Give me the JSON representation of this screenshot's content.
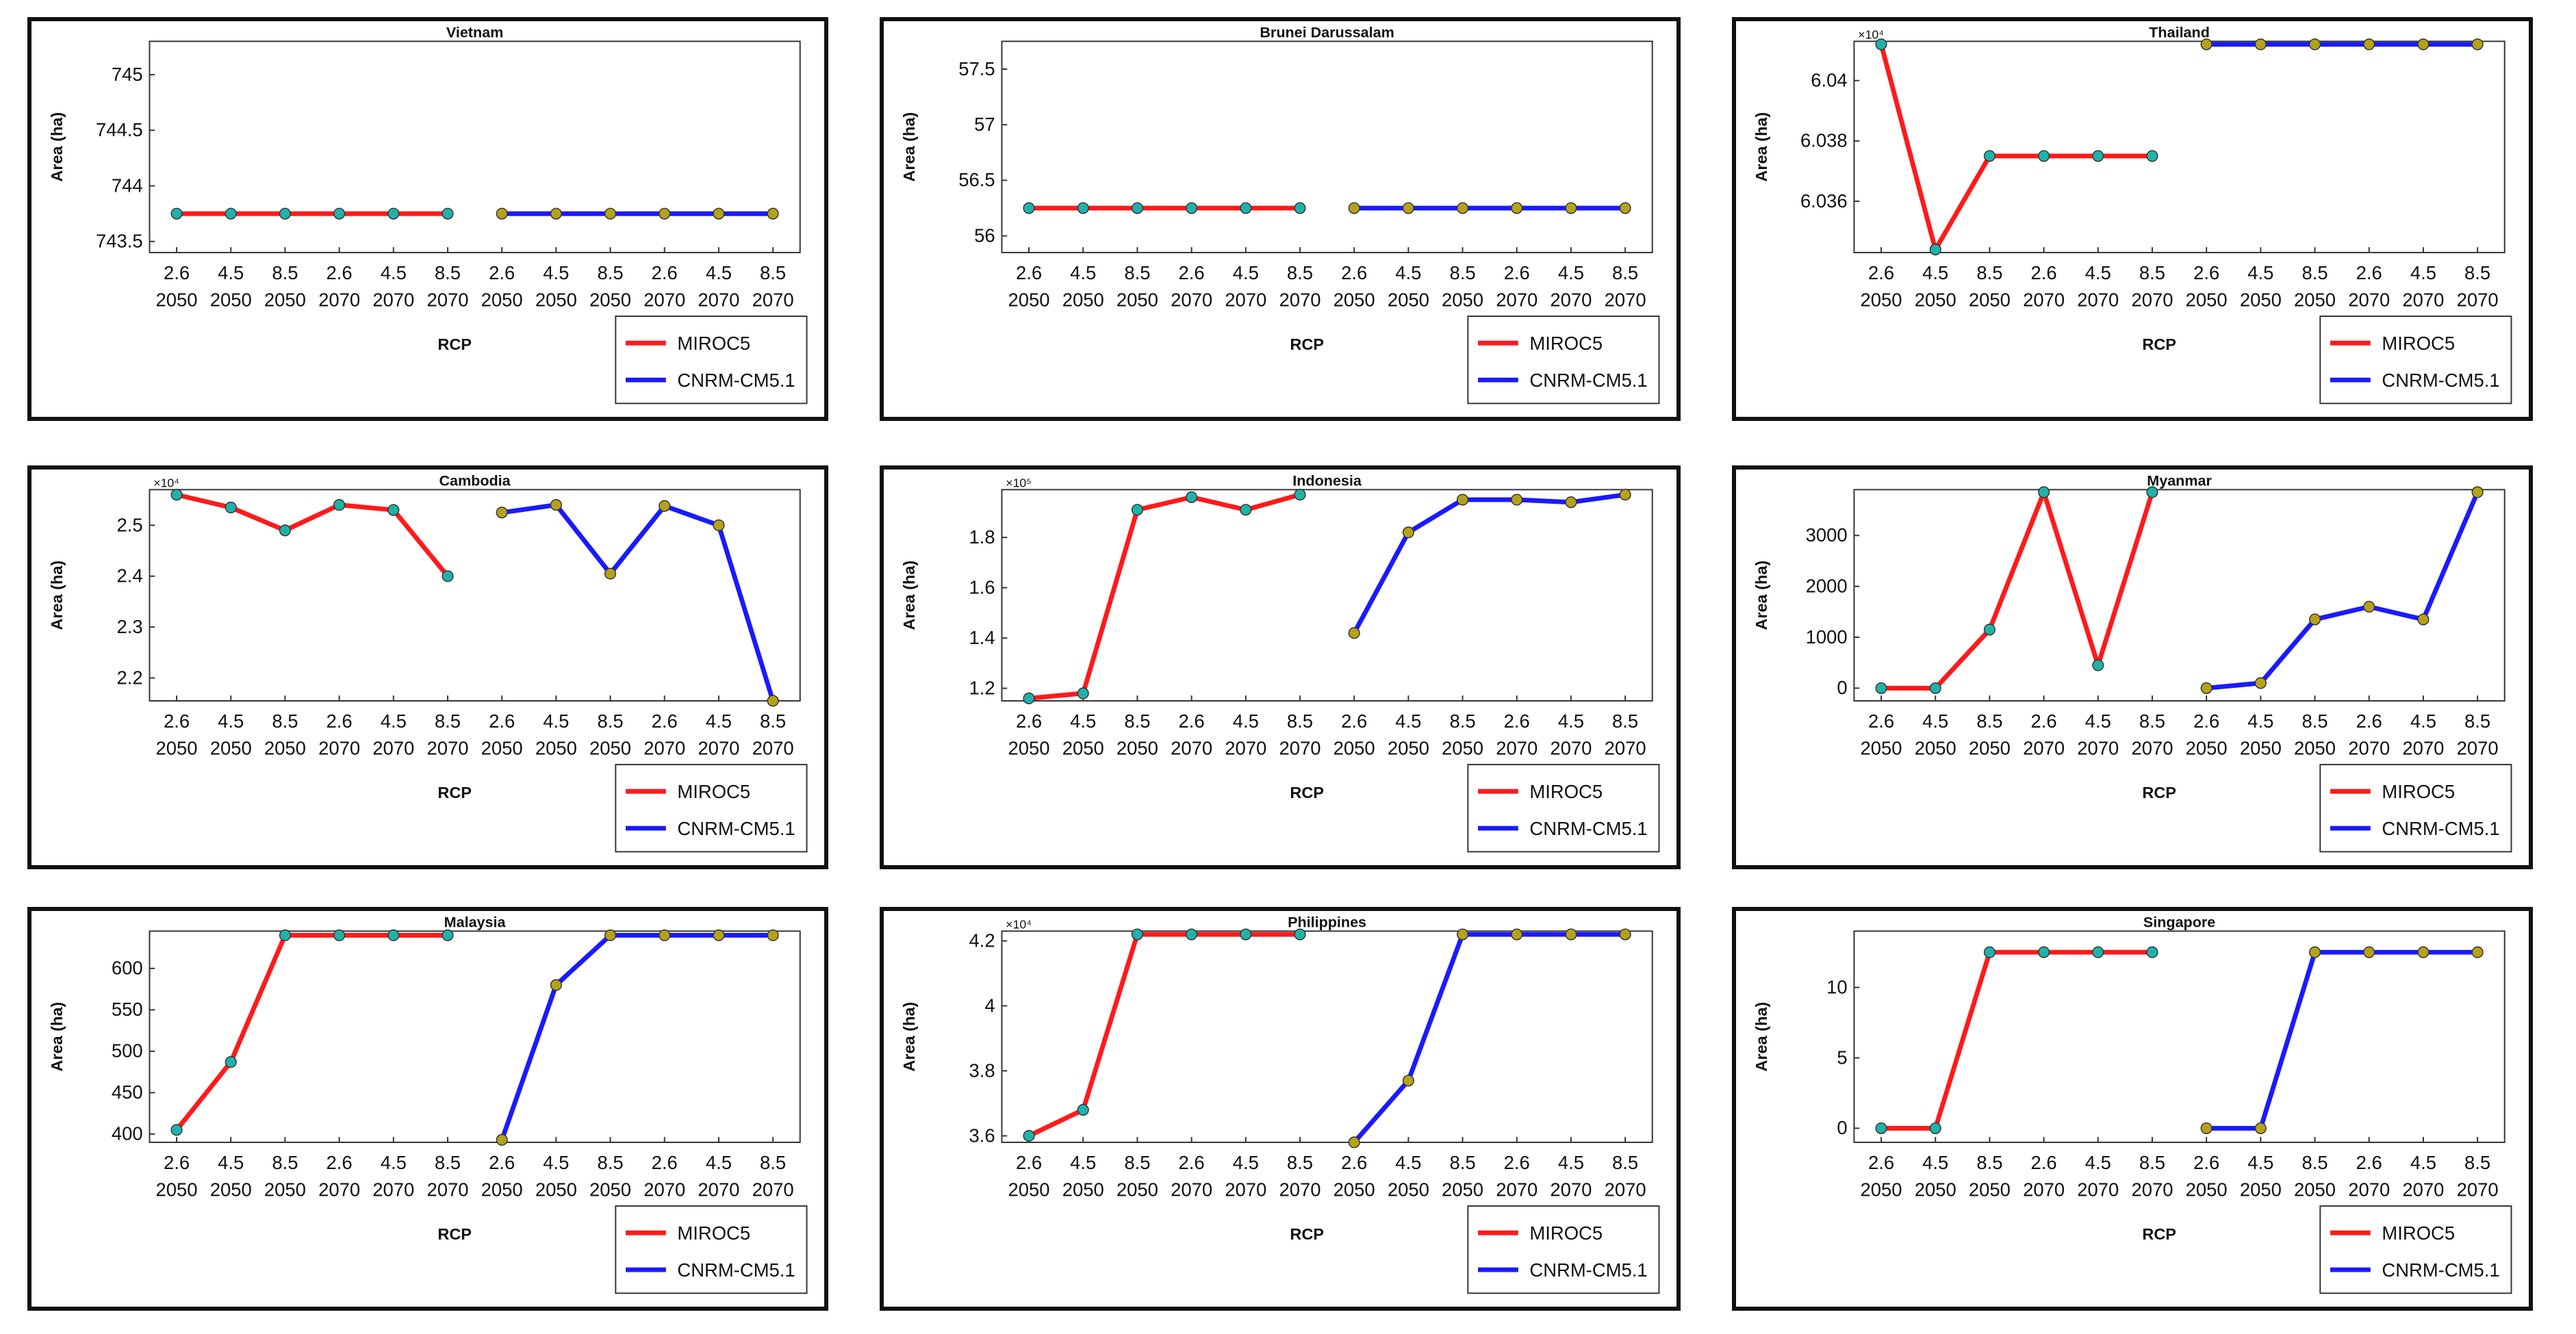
{
  "x_categories": [
    {
      "rcp": "2.6",
      "year": "2050"
    },
    {
      "rcp": "4.5",
      "year": "2050"
    },
    {
      "rcp": "8.5",
      "year": "2050"
    },
    {
      "rcp": "2.6",
      "year": "2070"
    },
    {
      "rcp": "4.5",
      "year": "2070"
    },
    {
      "rcp": "8.5",
      "year": "2070"
    },
    {
      "rcp": "2.6",
      "year": "2050"
    },
    {
      "rcp": "4.5",
      "year": "2050"
    },
    {
      "rcp": "8.5",
      "year": "2050"
    },
    {
      "rcp": "2.6",
      "year": "2070"
    },
    {
      "rcp": "4.5",
      "year": "2070"
    },
    {
      "rcp": "8.5",
      "year": "2070"
    }
  ],
  "colors": {
    "miroc5": "#ff1a1a",
    "cnrm": "#1a1aff",
    "marker": "#20b2aa",
    "marker_alt": "#b5a21a"
  },
  "chart_data": [
    {
      "type": "line",
      "title": "Vietnam",
      "xlabel": "RCP",
      "ylabel": "Area (ha)",
      "exponent": "",
      "ylim": [
        743.4,
        745.3
      ],
      "yticks": [
        {
          "v": 743.5,
          "l": "743.5"
        },
        {
          "v": 744,
          "l": "744"
        },
        {
          "v": 744.5,
          "l": "744.5"
        },
        {
          "v": 745,
          "l": "745"
        }
      ],
      "series": [
        {
          "name": "MIROC5",
          "values": [
            743.75,
            743.75,
            743.75,
            743.75,
            743.75,
            743.75
          ]
        },
        {
          "name": "CNRM-CM5.1",
          "values": [
            743.75,
            743.75,
            743.75,
            743.75,
            743.75,
            743.75
          ]
        }
      ]
    },
    {
      "type": "line",
      "title": "Brunei Darussalam",
      "xlabel": "RCP",
      "ylabel": "Area (ha)",
      "exponent": "",
      "ylim": [
        55.85,
        57.75
      ],
      "yticks": [
        {
          "v": 56,
          "l": "56"
        },
        {
          "v": 56.5,
          "l": "56.5"
        },
        {
          "v": 57,
          "l": "57"
        },
        {
          "v": 57.5,
          "l": "57.5"
        }
      ],
      "series": [
        {
          "name": "MIROC5",
          "values": [
            56.25,
            56.25,
            56.25,
            56.25,
            56.25,
            56.25
          ]
        },
        {
          "name": "CNRM-CM5.1",
          "values": [
            56.25,
            56.25,
            56.25,
            56.25,
            56.25,
            56.25
          ]
        }
      ]
    },
    {
      "type": "line",
      "title": "Thailand",
      "xlabel": "RCP",
      "ylabel": "Area (ha)",
      "exponent": "×10⁴",
      "ylim": [
        6.0343,
        6.0413
      ],
      "yticks": [
        {
          "v": 6.036,
          "l": "6.036"
        },
        {
          "v": 6.038,
          "l": "6.038"
        },
        {
          "v": 6.04,
          "l": "6.04"
        }
      ],
      "series": [
        {
          "name": "MIROC5",
          "values": [
            6.0412,
            6.0344,
            6.0375,
            6.0375,
            6.0375,
            6.0375
          ]
        },
        {
          "name": "CNRM-CM5.1",
          "values": [
            6.0412,
            6.0412,
            6.0412,
            6.0412,
            6.0412,
            6.0412
          ]
        }
      ]
    },
    {
      "type": "line",
      "title": "Cambodia",
      "xlabel": "RCP",
      "ylabel": "Area (ha)",
      "exponent": "×10⁴",
      "ylim": [
        2.155,
        2.57
      ],
      "yticks": [
        {
          "v": 2.2,
          "l": "2.2"
        },
        {
          "v": 2.3,
          "l": "2.3"
        },
        {
          "v": 2.4,
          "l": "2.4"
        },
        {
          "v": 2.5,
          "l": "2.5"
        }
      ],
      "series": [
        {
          "name": "MIROC5",
          "values": [
            2.56,
            2.535,
            2.49,
            2.54,
            2.53,
            2.4
          ]
        },
        {
          "name": "CNRM-CM5.1",
          "values": [
            2.525,
            2.54,
            2.405,
            2.538,
            2.5,
            2.155
          ]
        }
      ]
    },
    {
      "type": "line",
      "title": "Indonesia",
      "xlabel": "RCP",
      "ylabel": "Area (ha)",
      "exponent": "×10⁵",
      "ylim": [
        1.15,
        1.99
      ],
      "yticks": [
        {
          "v": 1.2,
          "l": "1.2"
        },
        {
          "v": 1.4,
          "l": "1.4"
        },
        {
          "v": 1.6,
          "l": "1.6"
        },
        {
          "v": 1.8,
          "l": "1.8"
        }
      ],
      "series": [
        {
          "name": "MIROC5",
          "values": [
            1.16,
            1.18,
            1.91,
            1.96,
            1.91,
            1.97
          ]
        },
        {
          "name": "CNRM-CM5.1",
          "values": [
            1.42,
            1.82,
            1.95,
            1.95,
            1.94,
            1.97
          ]
        }
      ]
    },
    {
      "type": "line",
      "title": "Myanmar",
      "xlabel": "RCP",
      "ylabel": "Area (ha)",
      "exponent": "",
      "ylim": [
        -250,
        3900
      ],
      "yticks": [
        {
          "v": 0,
          "l": "0"
        },
        {
          "v": 1000,
          "l": "1000"
        },
        {
          "v": 2000,
          "l": "2000"
        },
        {
          "v": 3000,
          "l": "3000"
        }
      ],
      "series": [
        {
          "name": "MIROC5",
          "values": [
            0,
            0,
            1150,
            3850,
            450,
            3850
          ]
        },
        {
          "name": "CNRM-CM5.1",
          "values": [
            0,
            100,
            1350,
            1600,
            1350,
            3850
          ]
        }
      ]
    },
    {
      "type": "line",
      "title": "Malaysia",
      "xlabel": "RCP",
      "ylabel": "Area (ha)",
      "exponent": "",
      "ylim": [
        390,
        645
      ],
      "yticks": [
        {
          "v": 400,
          "l": "400"
        },
        {
          "v": 450,
          "l": "450"
        },
        {
          "v": 500,
          "l": "500"
        },
        {
          "v": 550,
          "l": "550"
        },
        {
          "v": 600,
          "l": "600"
        }
      ],
      "series": [
        {
          "name": "MIROC5",
          "values": [
            405,
            487,
            640,
            640,
            640,
            640
          ]
        },
        {
          "name": "CNRM-CM5.1",
          "values": [
            393,
            580,
            640,
            640,
            640,
            640
          ]
        }
      ]
    },
    {
      "type": "line",
      "title": "Philippines",
      "xlabel": "RCP",
      "ylabel": "Area (ha)",
      "exponent": "×10⁴",
      "ylim": [
        3.58,
        4.23
      ],
      "yticks": [
        {
          "v": 3.6,
          "l": "3.6"
        },
        {
          "v": 3.8,
          "l": "3.8"
        },
        {
          "v": 4,
          "l": "4"
        },
        {
          "v": 4.2,
          "l": "4.2"
        }
      ],
      "series": [
        {
          "name": "MIROC5",
          "values": [
            3.6,
            3.68,
            4.22,
            4.22,
            4.22,
            4.22
          ]
        },
        {
          "name": "CNRM-CM5.1",
          "values": [
            3.58,
            3.77,
            4.22,
            4.22,
            4.22,
            4.22
          ]
        }
      ]
    },
    {
      "type": "line",
      "title": "Singapore",
      "xlabel": "RCP",
      "ylabel": "Area (ha)",
      "exponent": "",
      "ylim": [
        -1,
        14
      ],
      "yticks": [
        {
          "v": 0,
          "l": "0"
        },
        {
          "v": 5,
          "l": "5"
        },
        {
          "v": 10,
          "l": "10"
        }
      ],
      "series": [
        {
          "name": "MIROC5",
          "values": [
            0,
            0,
            12.5,
            12.5,
            12.5,
            12.5
          ]
        },
        {
          "name": "CNRM-CM5.1",
          "values": [
            0,
            0,
            12.5,
            12.5,
            12.5,
            12.5
          ]
        }
      ]
    }
  ]
}
